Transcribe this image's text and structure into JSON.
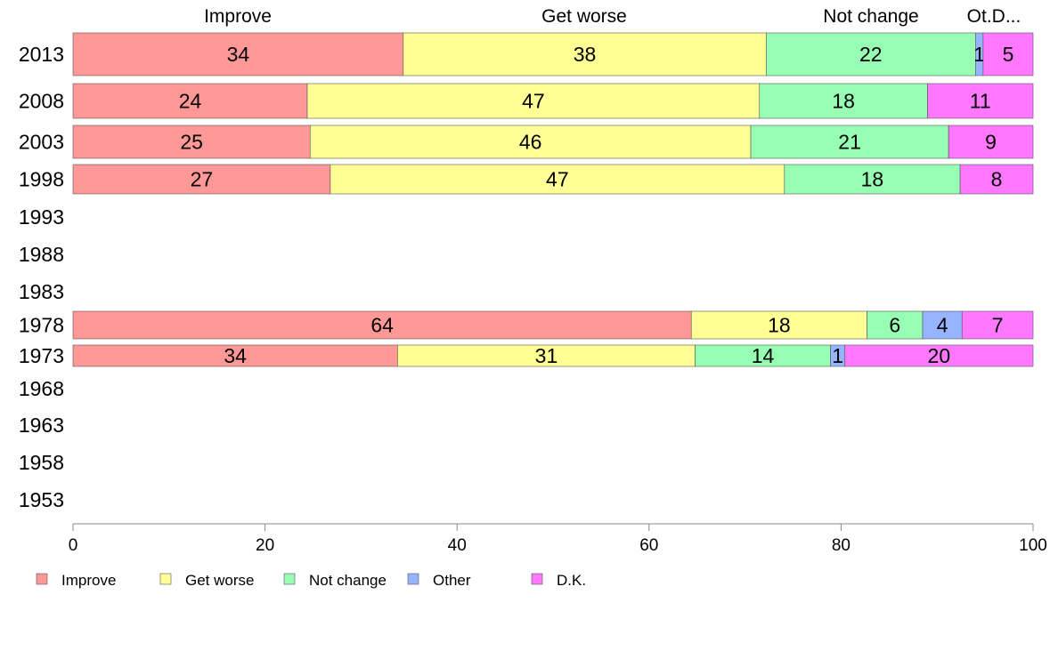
{
  "chart_data": {
    "type": "bar",
    "orientation": "horizontal",
    "stacked": true,
    "xlim": [
      0,
      100
    ],
    "x_ticks": [
      "0",
      "20",
      "40",
      "60",
      "80",
      "100"
    ],
    "top_labels": [
      "Improve",
      "Get worse",
      "Not change",
      "Ot.D..."
    ],
    "categories": [
      "2013",
      "2008",
      "2003",
      "1998",
      "1993",
      "1988",
      "1983",
      "1978",
      "1973",
      "1968",
      "1963",
      "1958",
      "1953"
    ],
    "series": [
      {
        "name": "Improve",
        "color": "#ff9896",
        "values": [
          34.4,
          24.4,
          24.7,
          26.8,
          null,
          null,
          null,
          64.4,
          33.8,
          null,
          null,
          null,
          null
        ],
        "labels": [
          "34",
          "24",
          "25",
          "27",
          "",
          "",
          "",
          "64",
          "34",
          "",
          "",
          "",
          ""
        ]
      },
      {
        "name": "Get worse",
        "color": "#ffff96",
        "values": [
          37.8,
          47.1,
          45.9,
          47.3,
          null,
          null,
          null,
          18.3,
          31.0,
          null,
          null,
          null,
          null
        ],
        "labels": [
          "38",
          "47",
          "46",
          "47",
          "",
          "",
          "",
          "18",
          "31",
          "",
          "",
          "",
          ""
        ]
      },
      {
        "name": "Not change",
        "color": "#96ffb4",
        "values": [
          21.8,
          17.5,
          20.6,
          18.3,
          null,
          null,
          null,
          5.8,
          14.1,
          null,
          null,
          null,
          null
        ],
        "labels": [
          "22",
          "18",
          "21",
          "18",
          "",
          "",
          "",
          "6",
          "14",
          "",
          "",
          "",
          ""
        ]
      },
      {
        "name": "Other",
        "color": "#96b4ff",
        "values": [
          0.8,
          0,
          0,
          0,
          null,
          null,
          null,
          4.1,
          1.5,
          null,
          null,
          null,
          null
        ],
        "labels": [
          "1",
          "",
          "",
          "",
          "",
          "",
          "",
          "4",
          "1",
          "",
          "",
          "",
          ""
        ]
      },
      {
        "name": "D.K.",
        "color": "#ff78ff",
        "values": [
          5.2,
          11.0,
          8.8,
          7.6,
          null,
          null,
          null,
          7.4,
          19.6,
          null,
          null,
          null,
          null
        ],
        "labels": [
          "5",
          "11",
          "9",
          "8",
          "",
          "",
          "",
          "7",
          "20",
          "",
          "",
          "",
          ""
        ]
      }
    ],
    "legend": [
      "Improve",
      "Get worse",
      "Not change",
      "Other",
      "D.K."
    ],
    "legend_position": "bottom"
  }
}
